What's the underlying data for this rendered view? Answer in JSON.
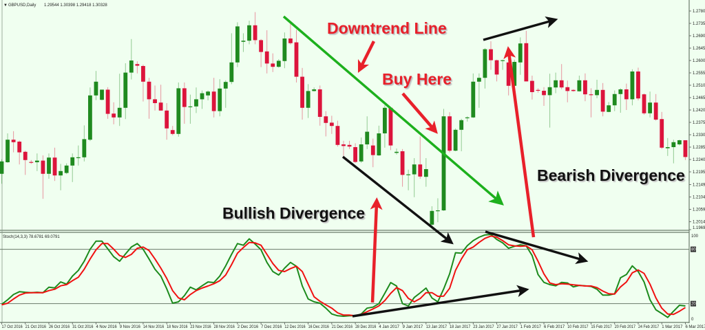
{
  "header": {
    "symbol_label": "GBPUSD,Daily",
    "ohlc_label": "1.29544 1.30398 1.29418 1.30328",
    "dropdown_icon": "triangle-down-icon"
  },
  "indicator": {
    "label": "Stoch(14,3,3) 78.6781 69.0791",
    "levels": [
      "100",
      "80",
      "20",
      "0"
    ]
  },
  "annotations": {
    "downtrend_line": "Downtrend Line",
    "buy_here": "Buy Here",
    "bullish_divergence": "Bullish Divergence",
    "bearish_divergence": "Bearish Divergence"
  },
  "colors": {
    "background": "#F0FFF0",
    "bull_candle": "#1F8A1F",
    "bear_candle": "#DC143C",
    "stoch_main": "#1C8A1C",
    "stoch_signal": "#F01010",
    "trendline": "#1DB01D",
    "arrow_red": "#E8202A",
    "arrow_black": "#111111"
  },
  "chart_data": [
    {
      "type": "candlestick",
      "title": "GBPUSD,Daily",
      "ylim": [
        1.1969,
        1.278
      ],
      "y_ticks": [
        "1.27800",
        "1.27350",
        "1.26900",
        "1.26450",
        "1.26000",
        "1.25550",
        "1.25100",
        "1.24650",
        "1.24200",
        "1.23750",
        "1.23300",
        "1.22850",
        "1.22400",
        "1.21950",
        "1.21490",
        "1.21040",
        "1.20590",
        "1.20140",
        "1.19690"
      ],
      "x_tick_labels": [
        "17 Oct 2016",
        "21 Oct 2016",
        "26 Oct 2016",
        "31 Oct 2016",
        "4 Nov 2016",
        "9 Nov 2016",
        "14 Nov 2016",
        "18 Nov 2016",
        "23 Nov 2016",
        "28 Nov 2016",
        "2 Dec 2016",
        "7 Dec 2016",
        "12 Dec 2016",
        "16 Dec 2016",
        "21 Dec 2016",
        "28 Dec 2016",
        "4 Jan 2017",
        "9 Jan 2017",
        "13 Jan 2017",
        "18 Jan 2017",
        "23 Jan 2017",
        "27 Jan 2017",
        "1 Feb 2017",
        "6 Feb 2017",
        "10 Feb 2017",
        "15 Feb 2017",
        "20 Feb 2017",
        "24 Feb 2017",
        "1 Mar 2017",
        "6 Mar 2017"
      ],
      "x_tick_every_n_candles": 4,
      "ohlc_fields": [
        "open",
        "high",
        "low",
        "close"
      ],
      "candles": [
        [
          1.2188,
          1.2241,
          1.2152,
          1.2233
        ],
        [
          1.223,
          1.2335,
          1.2228,
          1.2312
        ],
        [
          1.2312,
          1.2343,
          1.2266,
          1.2303
        ],
        [
          1.2305,
          1.2309,
          1.2222,
          1.2266
        ],
        [
          1.2268,
          1.2272,
          1.2184,
          1.2238
        ],
        [
          1.2231,
          1.2238,
          1.2224,
          1.223
        ],
        [
          1.223,
          1.2262,
          1.2198,
          1.2236
        ],
        [
          1.2236,
          1.2255,
          1.2097,
          1.2188
        ],
        [
          1.2188,
          1.2262,
          1.217,
          1.2247
        ],
        [
          1.2247,
          1.2283,
          1.2162,
          1.2182
        ],
        [
          1.2182,
          1.2224,
          1.2128,
          1.2198
        ],
        [
          1.2191,
          1.2226,
          1.2187,
          1.2218
        ],
        [
          1.2218,
          1.2262,
          1.2158,
          1.2248
        ],
        [
          1.2246,
          1.2291,
          1.2218,
          1.2248
        ],
        [
          1.2248,
          1.2364,
          1.2233,
          1.2314
        ],
        [
          1.2312,
          1.2502,
          1.2307,
          1.2473
        ],
        [
          1.2473,
          1.2562,
          1.2456,
          1.2523
        ],
        [
          1.2457,
          1.2494,
          1.2455,
          1.2494
        ],
        [
          1.2494,
          1.2503,
          1.2388,
          1.2406
        ],
        [
          1.2407,
          1.2448,
          1.2368,
          1.2393
        ],
        [
          1.2393,
          1.2552,
          1.2362,
          1.2428
        ],
        [
          1.2428,
          1.259,
          1.2387,
          1.2556
        ],
        [
          1.2556,
          1.2678,
          1.2531,
          1.26
        ],
        [
          1.2587,
          1.2597,
          1.2553,
          1.2581
        ],
        [
          1.258,
          1.2585,
          1.2451,
          1.2523
        ],
        [
          1.2523,
          1.2537,
          1.2388,
          1.2459
        ],
        [
          1.2459,
          1.2509,
          1.2418,
          1.2445
        ],
        [
          1.2447,
          1.2512,
          1.2418,
          1.2418
        ],
        [
          1.2418,
          1.2445,
          1.2312,
          1.2353
        ],
        [
          1.2347,
          1.2362,
          1.2328,
          1.2333
        ],
        [
          1.2333,
          1.252,
          1.2323,
          1.2499
        ],
        [
          1.2499,
          1.252,
          1.237,
          1.2431
        ],
        [
          1.2431,
          1.2476,
          1.237,
          1.2433
        ],
        [
          1.2433,
          1.2502,
          1.2409,
          1.2459
        ],
        [
          1.2459,
          1.2491,
          1.2424,
          1.2481
        ],
        [
          1.2473,
          1.2491,
          1.2455,
          1.2487
        ],
        [
          1.2487,
          1.2537,
          1.2393,
          1.2416
        ],
        [
          1.2416,
          1.2532,
          1.2397,
          1.2498
        ],
        [
          1.2498,
          1.2528,
          1.2428,
          1.2522
        ],
        [
          1.2522,
          1.2699,
          1.2514,
          1.2593
        ],
        [
          1.2593,
          1.2739,
          1.2576,
          1.2724
        ],
        [
          1.2668,
          1.2699,
          1.2631,
          1.2672
        ],
        [
          1.2672,
          1.2745,
          1.2659,
          1.2728
        ],
        [
          1.2728,
          1.2776,
          1.2659,
          1.2674
        ],
        [
          1.2674,
          1.2678,
          1.2576,
          1.2631
        ],
        [
          1.2633,
          1.271,
          1.2553,
          1.2589
        ],
        [
          1.2589,
          1.2626,
          1.2558,
          1.2577
        ],
        [
          1.2577,
          1.2605,
          1.2574,
          1.2599
        ],
        [
          1.2598,
          1.2702,
          1.2572,
          1.268
        ],
        [
          1.268,
          1.2733,
          1.2658,
          1.2663
        ],
        [
          1.2666,
          1.2712,
          1.252,
          1.2541
        ],
        [
          1.2541,
          1.2573,
          1.2385,
          1.2428
        ],
        [
          1.2428,
          1.2514,
          1.2391,
          1.2489
        ],
        [
          1.2489,
          1.2502,
          1.2487,
          1.2495
        ],
        [
          1.2495,
          1.2509,
          1.2363,
          1.2395
        ],
        [
          1.2397,
          1.2416,
          1.2324,
          1.2373
        ],
        [
          1.2374,
          1.2399,
          1.2333,
          1.2362
        ],
        [
          1.2362,
          1.2381,
          1.2287,
          1.2293
        ],
        [
          1.2295,
          1.2308,
          1.2253,
          1.2289
        ],
        [
          1.2293,
          1.2308,
          1.2278,
          1.2287
        ],
        [
          1.2285,
          1.2299,
          1.2228,
          1.2231
        ],
        [
          1.2233,
          1.232,
          1.2228,
          1.2295
        ],
        [
          1.2295,
          1.2397,
          1.2278,
          1.2341
        ],
        [
          1.2291,
          1.2316,
          1.2212,
          1.2256
        ],
        [
          1.2255,
          1.2363,
          1.2253,
          1.2335
        ],
        [
          1.2335,
          1.2437,
          1.2283,
          1.2428
        ],
        [
          1.2428,
          1.2428,
          1.2274,
          1.2291
        ],
        [
          1.2264,
          1.228,
          1.2258,
          1.2268
        ],
        [
          1.227,
          1.2278,
          1.2141,
          1.2184
        ],
        [
          1.2184,
          1.2203,
          1.2128,
          1.2186
        ],
        [
          1.2186,
          1.2245,
          1.2103,
          1.2222
        ],
        [
          1.2222,
          1.2324,
          1.217,
          1.2178
        ],
        [
          1.2177,
          1.2245,
          1.2141,
          1.2205
        ],
        [
          1.2003,
          1.207,
          1.1995,
          1.2053
        ],
        [
          1.2053,
          1.2099,
          1.2012,
          1.2055
        ],
        [
          1.2055,
          1.2424,
          1.2053,
          1.2397
        ],
        [
          1.2397,
          1.2412,
          1.2266,
          1.2272
        ],
        [
          1.2272,
          1.2353,
          1.227,
          1.2348
        ],
        [
          1.2348,
          1.2388,
          1.227,
          1.2383
        ],
        [
          1.2391,
          1.2397,
          1.2378,
          1.2393
        ],
        [
          1.2393,
          1.2553,
          1.2391,
          1.2523
        ],
        [
          1.2523,
          1.2553,
          1.2428,
          1.2537
        ],
        [
          1.2537,
          1.2645,
          1.2498,
          1.2641
        ],
        [
          1.2641,
          1.267,
          1.2566,
          1.2601
        ],
        [
          1.2601,
          1.2603,
          1.2524,
          1.2549
        ],
        [
          1.2598,
          1.2603,
          1.2566,
          1.2601
        ],
        [
          1.2593,
          1.2608,
          1.2473,
          1.2508
        ],
        [
          1.2508,
          1.2603,
          1.2503,
          1.2595
        ],
        [
          1.2593,
          1.2684,
          1.2548,
          1.2662
        ],
        [
          1.2663,
          1.2708,
          1.2524,
          1.2524
        ],
        [
          1.2526,
          1.2545,
          1.2458,
          1.2485
        ],
        [
          1.2493,
          1.2499,
          1.2483,
          1.249
        ],
        [
          1.249,
          1.2503,
          1.2435,
          1.2474
        ],
        [
          1.2474,
          1.2552,
          1.2356,
          1.2503
        ],
        [
          1.2502,
          1.2556,
          1.2481,
          1.2528
        ],
        [
          1.2528,
          1.2587,
          1.2495,
          1.2502
        ],
        [
          1.2503,
          1.2527,
          1.2448,
          1.2489
        ],
        [
          1.2493,
          1.2495,
          1.2487,
          1.2489
        ],
        [
          1.2488,
          1.2545,
          1.2487,
          1.2528
        ],
        [
          1.2528,
          1.2553,
          1.2452,
          1.2477
        ],
        [
          1.2477,
          1.2499,
          1.2393,
          1.2474
        ],
        [
          1.2474,
          1.253,
          1.2463,
          1.2493
        ],
        [
          1.2493,
          1.2518,
          1.2397,
          1.2414
        ],
        [
          1.2413,
          1.2449,
          1.2412,
          1.2437
        ],
        [
          1.2437,
          1.2491,
          1.2416,
          1.2478
        ],
        [
          1.2478,
          1.2499,
          1.241,
          1.2495
        ],
        [
          1.2495,
          1.2516,
          1.242,
          1.2459
        ],
        [
          1.2459,
          1.2568,
          1.2437,
          1.256
        ],
        [
          1.256,
          1.2574,
          1.2455,
          1.2462
        ],
        [
          1.2477,
          1.248,
          1.2403,
          1.2408
        ],
        [
          1.2408,
          1.2487,
          1.2393,
          1.2447
        ],
        [
          1.2447,
          1.2478,
          1.2381,
          1.2385
        ],
        [
          1.2387,
          1.2413,
          1.2278,
          1.2283
        ],
        [
          1.2281,
          1.2318,
          1.2253,
          1.2285
        ],
        [
          1.2285,
          1.2312,
          1.2226,
          1.2303
        ],
        [
          1.2295,
          1.2312,
          1.2291,
          1.231
        ],
        [
          1.231,
          1.231,
          1.2238,
          1.2249
        ]
      ]
    },
    {
      "type": "line",
      "title": "Stoch(14,3,3)",
      "ylim": [
        0,
        100
      ],
      "levels": [
        80,
        20
      ],
      "series": [
        {
          "values": [
            19.2,
            24.3,
            30.1,
            33.2,
            32.6,
            32.1,
            32.6,
            32.1,
            38.2,
            37.4,
            44.0,
            41.5,
            50.4,
            56.7,
            66.8,
            80.0,
            89.1,
            89.1,
            80.5,
            71.9,
            66.8,
            74.9,
            82.5,
            86.3,
            80.0,
            69.3,
            58.0,
            50.4,
            36.4,
            20.5,
            22.0,
            28.9,
            38.2,
            35.2,
            39.7,
            44.0,
            43.3,
            50.4,
            61.7,
            74.4,
            86.3,
            84.5,
            91.6,
            85.8,
            79.5,
            65.5,
            55.4,
            51.6,
            59.2,
            65.5,
            61.3,
            39.5,
            25.1,
            22.0,
            20.5,
            15.0,
            8.6,
            6.6,
            6.1,
            6.6,
            6.6,
            8.6,
            15.0,
            16.2,
            20.0,
            31.4,
            43.3,
            39.5,
            20.0,
            17.5,
            26.8,
            31.9,
            37.2,
            26.3,
            22.0,
            36.4,
            52.9,
            76.2,
            75.7,
            84.0,
            89.6,
            93.4,
            95.9,
            96.4,
            90.9,
            87.1,
            81.2,
            83.3,
            85.0,
            83.8,
            73.1,
            52.2,
            43.5,
            41.0,
            39.7,
            43.5,
            42.8,
            38.5,
            40.2,
            39.7,
            39.0,
            35.9,
            29.4,
            29.4,
            30.9,
            48.6,
            52.2,
            61.7,
            55.4,
            44.0,
            24.3,
            13.2,
            9.1,
            4.8,
            11.6,
            18.2,
            17.5
          ]
        },
        {
          "values": [
            18.7,
            20.5,
            25.1,
            29.4,
            31.7,
            32.1,
            32.1,
            32.1,
            34.4,
            35.9,
            39.7,
            41.0,
            45.3,
            49.1,
            58.0,
            69.3,
            79.5,
            86.3,
            86.3,
            80.2,
            73.1,
            71.1,
            74.4,
            81.2,
            82.5,
            78.7,
            69.3,
            59.2,
            47.8,
            34.4,
            26.3,
            24.3,
            30.1,
            34.4,
            37.2,
            39.5,
            42.0,
            45.3,
            51.6,
            63.0,
            75.7,
            82.0,
            87.6,
            87.1,
            84.5,
            74.4,
            64.3,
            56.7,
            55.4,
            58.7,
            61.3,
            55.4,
            41.5,
            27.6,
            22.6,
            18.7,
            15.0,
            9.9,
            7.4,
            7.4,
            6.6,
            8.1,
            11.1,
            14.2,
            17.5,
            23.3,
            31.4,
            37.7,
            34.4,
            25.8,
            22.0,
            25.6,
            32.1,
            32.1,
            28.1,
            28.3,
            37.0,
            56.7,
            69.3,
            79.5,
            82.5,
            87.6,
            92.1,
            94.7,
            93.4,
            89.6,
            85.0,
            83.8,
            83.3,
            83.8,
            79.5,
            66.8,
            52.9,
            42.8,
            41.0,
            42.0,
            41.5,
            40.8,
            40.2,
            39.5,
            39.5,
            37.7,
            33.9,
            30.9,
            30.6,
            38.5,
            44.0,
            54.1,
            57.2,
            53.4,
            41.5,
            26.3,
            15.0,
            8.6,
            8.1,
            11.6,
            15.7
          ]
        }
      ]
    }
  ]
}
